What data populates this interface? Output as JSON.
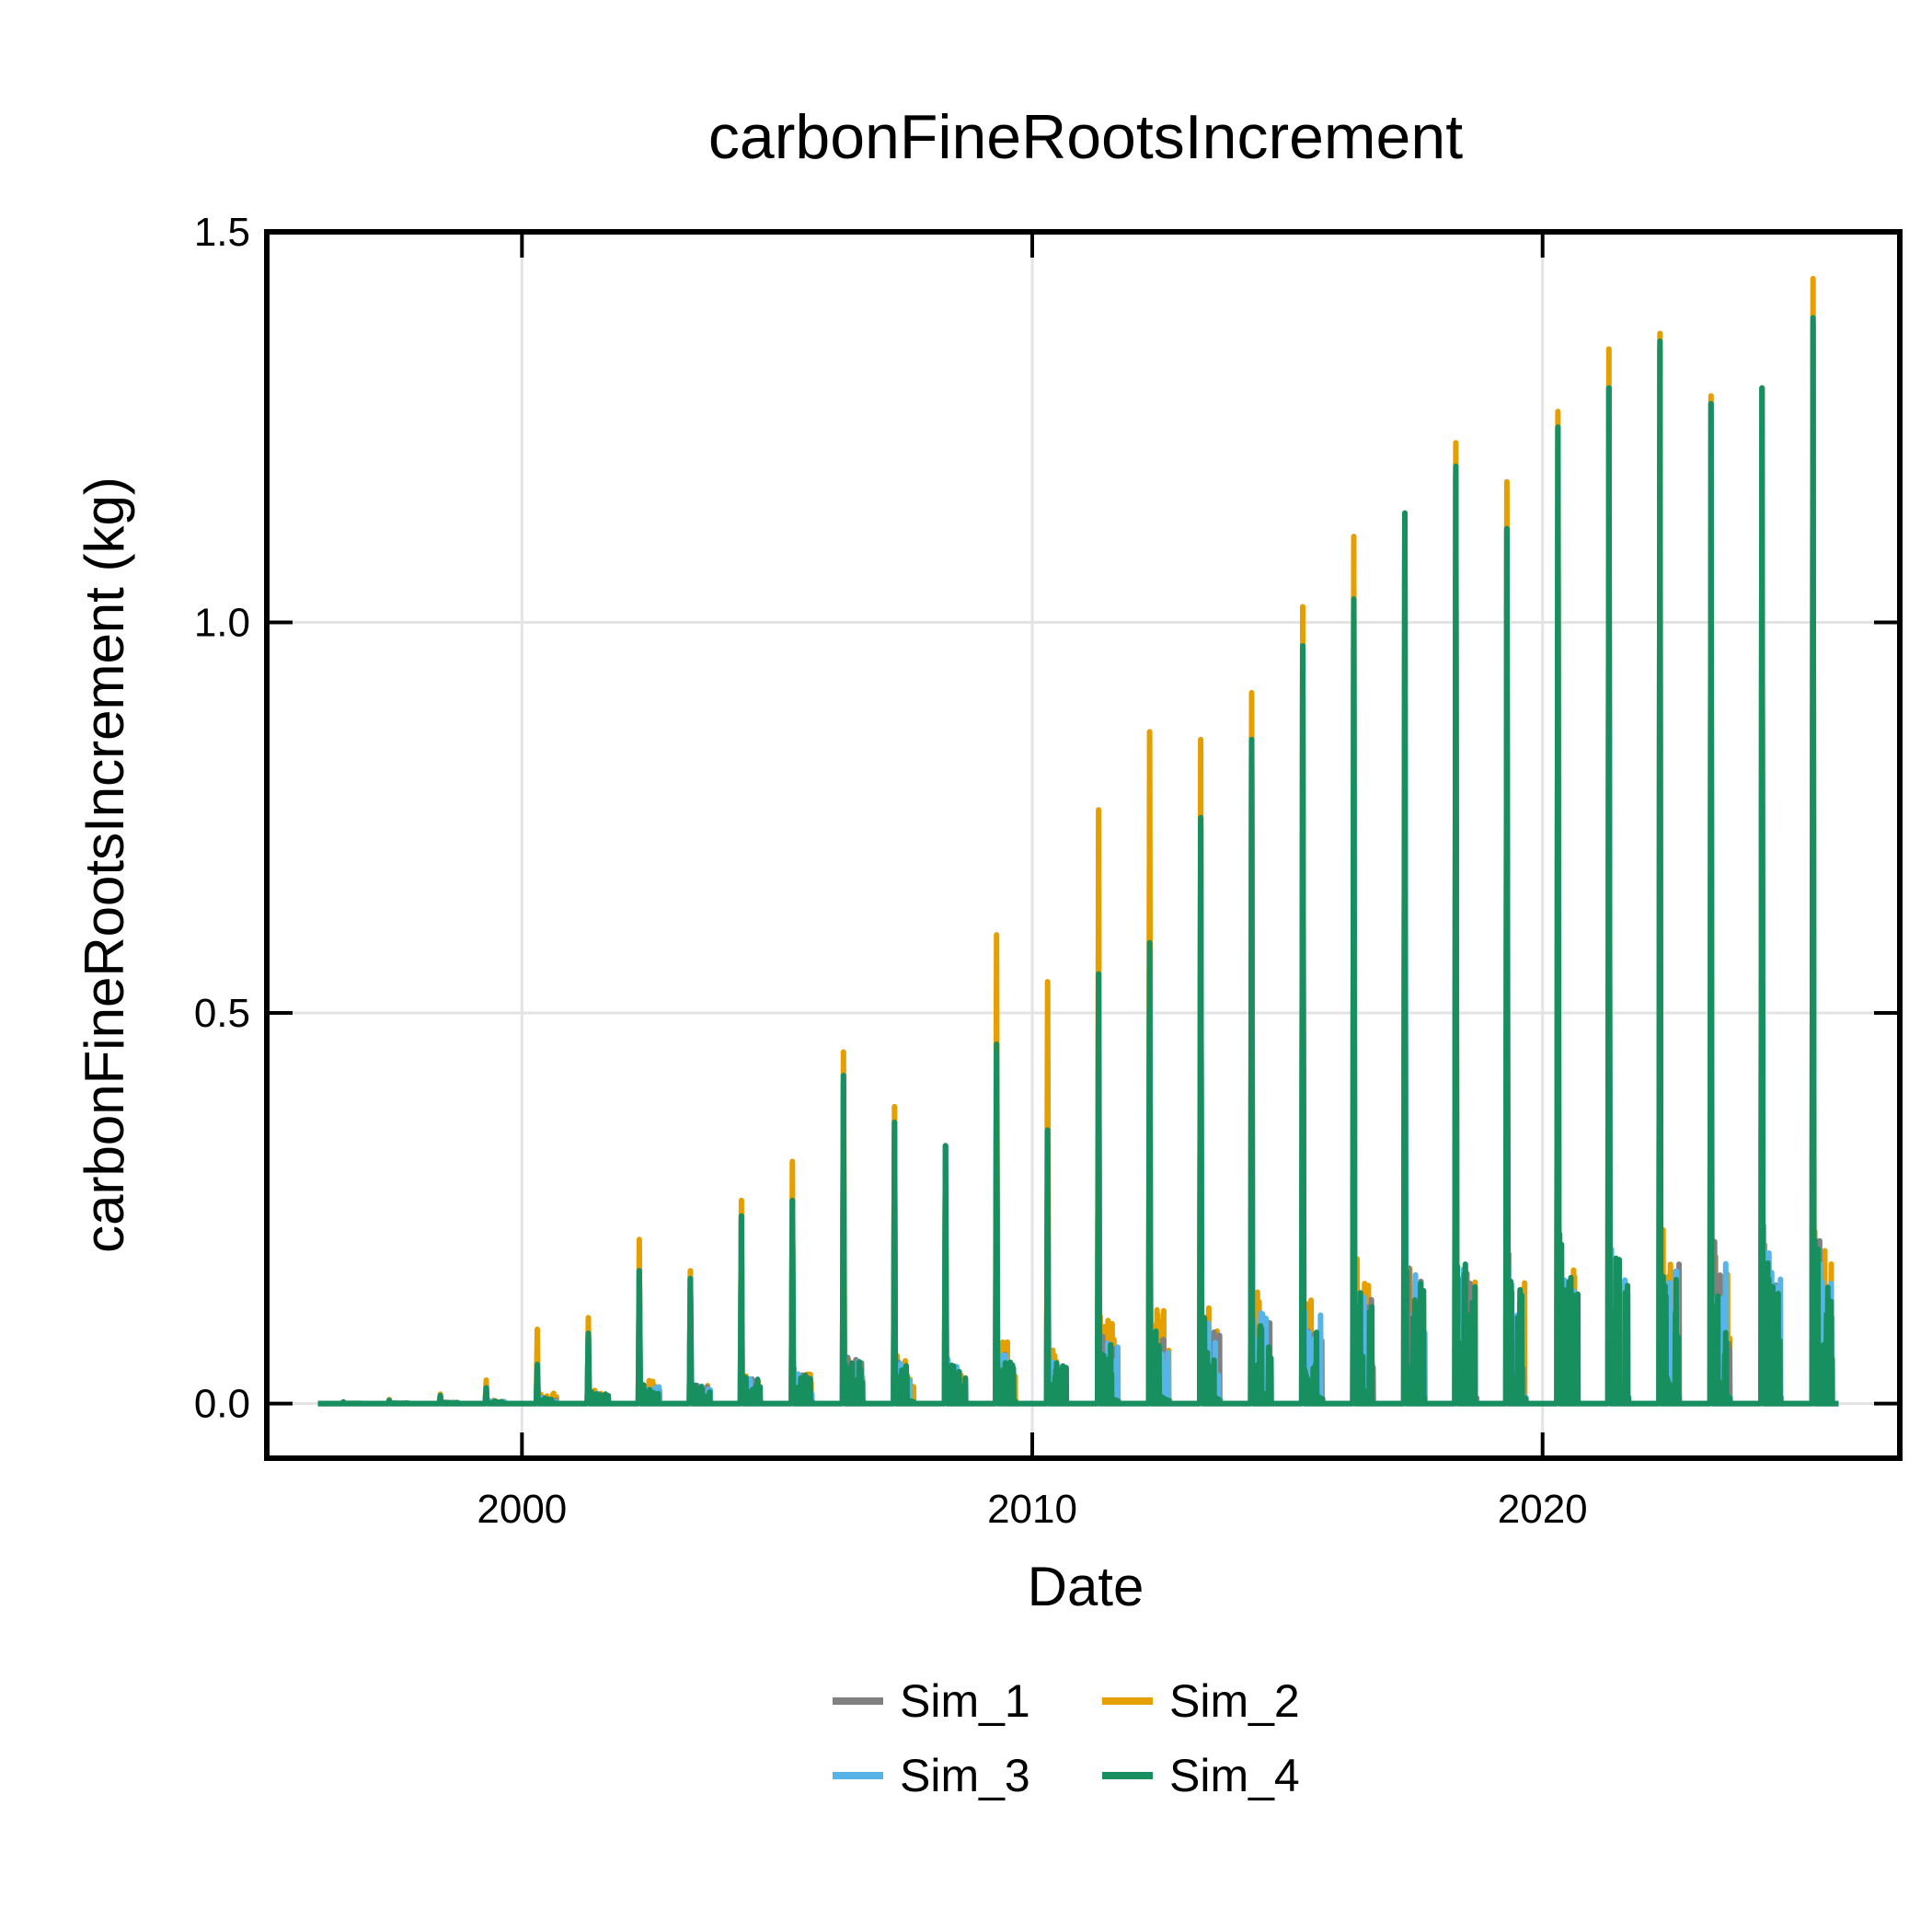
{
  "chart_data": {
    "type": "line",
    "title": "carbonFineRootsIncrement",
    "xlabel": "Date",
    "ylabel": "carbonFineRootsIncrement (kg)",
    "xlim": [
      1995.0,
      2027.0
    ],
    "ylim": [
      -0.07,
      1.5
    ],
    "x_ticks": [
      {
        "value": 2000,
        "label": "2000"
      },
      {
        "value": 2010,
        "label": "2010"
      },
      {
        "value": 2020,
        "label": "2020"
      }
    ],
    "y_ticks": [
      {
        "value": 0.0,
        "label": "0.0"
      },
      {
        "value": 0.5,
        "label": "0.5"
      },
      {
        "value": 1.0,
        "label": "1.0"
      },
      {
        "value": 1.5,
        "label": "1.5"
      }
    ],
    "grid": true,
    "legend_position": "bottom",
    "series_order": [
      "Sim_2",
      "Sim_1",
      "Sim_3",
      "Sim_4"
    ],
    "series": [
      {
        "name": "Sim_1",
        "color": "#808080",
        "peaks": [
          [
            1996.5,
            0.002
          ],
          [
            1997.4,
            0.004
          ],
          [
            1998.4,
            0.01
          ],
          [
            1999.3,
            0.02
          ],
          [
            2000.3,
            0.05
          ],
          [
            2001.3,
            0.09
          ],
          [
            2002.3,
            0.17
          ],
          [
            2003.3,
            0.16
          ],
          [
            2004.3,
            0.24
          ],
          [
            2005.3,
            0.26
          ],
          [
            2006.3,
            0.41
          ],
          [
            2007.3,
            0.35
          ],
          [
            2008.3,
            0.33
          ],
          [
            2009.3,
            0.45
          ],
          [
            2010.3,
            0.34
          ],
          [
            2011.3,
            0.55
          ],
          [
            2012.3,
            0.58
          ],
          [
            2013.3,
            0.74
          ],
          [
            2014.3,
            0.85
          ],
          [
            2015.3,
            0.97
          ],
          [
            2016.3,
            1.03
          ],
          [
            2017.3,
            1.14
          ],
          [
            2018.3,
            1.19
          ],
          [
            2019.3,
            1.12
          ],
          [
            2020.3,
            1.25
          ],
          [
            2021.3,
            1.3
          ],
          [
            2022.3,
            1.35
          ],
          [
            2023.3,
            1.28
          ],
          [
            2024.3,
            1.3
          ],
          [
            2025.3,
            1.38
          ]
        ]
      },
      {
        "name": "Sim_2",
        "color": "#E69F00",
        "peaks": [
          [
            1996.5,
            0.002
          ],
          [
            1997.4,
            0.005
          ],
          [
            1998.4,
            0.012
          ],
          [
            1999.3,
            0.03
          ],
          [
            2000.3,
            0.095
          ],
          [
            2001.3,
            0.11
          ],
          [
            2002.3,
            0.21
          ],
          [
            2003.3,
            0.17
          ],
          [
            2004.3,
            0.26
          ],
          [
            2005.3,
            0.31
          ],
          [
            2006.3,
            0.45
          ],
          [
            2007.3,
            0.38
          ],
          [
            2008.3,
            0.33
          ],
          [
            2009.3,
            0.6
          ],
          [
            2010.3,
            0.54
          ],
          [
            2011.3,
            0.76
          ],
          [
            2012.3,
            0.86
          ],
          [
            2013.3,
            0.85
          ],
          [
            2014.3,
            0.91
          ],
          [
            2015.3,
            1.02
          ],
          [
            2016.3,
            1.11
          ],
          [
            2017.3,
            1.14
          ],
          [
            2018.3,
            1.23
          ],
          [
            2019.3,
            1.18
          ],
          [
            2020.3,
            1.27
          ],
          [
            2021.3,
            1.35
          ],
          [
            2022.3,
            1.37
          ],
          [
            2023.3,
            1.29
          ],
          [
            2024.3,
            1.3
          ],
          [
            2025.3,
            1.44
          ]
        ]
      },
      {
        "name": "Sim_3",
        "color": "#56B4E9",
        "peaks": [
          [
            1996.5,
            0.002
          ],
          [
            1997.4,
            0.004
          ],
          [
            1998.4,
            0.01
          ],
          [
            1999.3,
            0.02
          ],
          [
            2000.3,
            0.05
          ],
          [
            2001.3,
            0.09
          ],
          [
            2002.3,
            0.17
          ],
          [
            2003.3,
            0.16
          ],
          [
            2004.3,
            0.24
          ],
          [
            2005.3,
            0.26
          ],
          [
            2006.3,
            0.41
          ],
          [
            2007.3,
            0.35
          ],
          [
            2008.3,
            0.33
          ],
          [
            2009.3,
            0.45
          ],
          [
            2010.3,
            0.34
          ],
          [
            2011.3,
            0.55
          ],
          [
            2012.3,
            0.58
          ],
          [
            2013.3,
            0.74
          ],
          [
            2014.3,
            0.85
          ],
          [
            2015.3,
            0.97
          ],
          [
            2016.3,
            1.03
          ],
          [
            2017.3,
            1.14
          ],
          [
            2018.3,
            1.19
          ],
          [
            2019.3,
            1.12
          ],
          [
            2020.3,
            1.25
          ],
          [
            2021.3,
            1.3
          ],
          [
            2022.3,
            1.35
          ],
          [
            2023.3,
            1.28
          ],
          [
            2024.3,
            1.3
          ],
          [
            2025.3,
            1.38
          ]
        ]
      },
      {
        "name": "Sim_4",
        "color": "#178F5E",
        "peaks": [
          [
            1996.5,
            0.002
          ],
          [
            1997.4,
            0.004
          ],
          [
            1998.4,
            0.01
          ],
          [
            1999.3,
            0.02
          ],
          [
            2000.3,
            0.05
          ],
          [
            2001.3,
            0.09
          ],
          [
            2002.3,
            0.17
          ],
          [
            2003.3,
            0.16
          ],
          [
            2004.3,
            0.24
          ],
          [
            2005.3,
            0.26
          ],
          [
            2006.3,
            0.42
          ],
          [
            2007.3,
            0.36
          ],
          [
            2008.3,
            0.33
          ],
          [
            2009.3,
            0.46
          ],
          [
            2010.3,
            0.35
          ],
          [
            2011.3,
            0.55
          ],
          [
            2012.3,
            0.59
          ],
          [
            2013.3,
            0.75
          ],
          [
            2014.3,
            0.85
          ],
          [
            2015.3,
            0.97
          ],
          [
            2016.3,
            1.03
          ],
          [
            2017.3,
            1.14
          ],
          [
            2018.3,
            1.2
          ],
          [
            2019.3,
            1.12
          ],
          [
            2020.3,
            1.25
          ],
          [
            2021.3,
            1.3
          ],
          [
            2022.3,
            1.36
          ],
          [
            2023.3,
            1.28
          ],
          [
            2024.3,
            1.3
          ],
          [
            2025.3,
            1.39
          ]
        ]
      }
    ]
  }
}
